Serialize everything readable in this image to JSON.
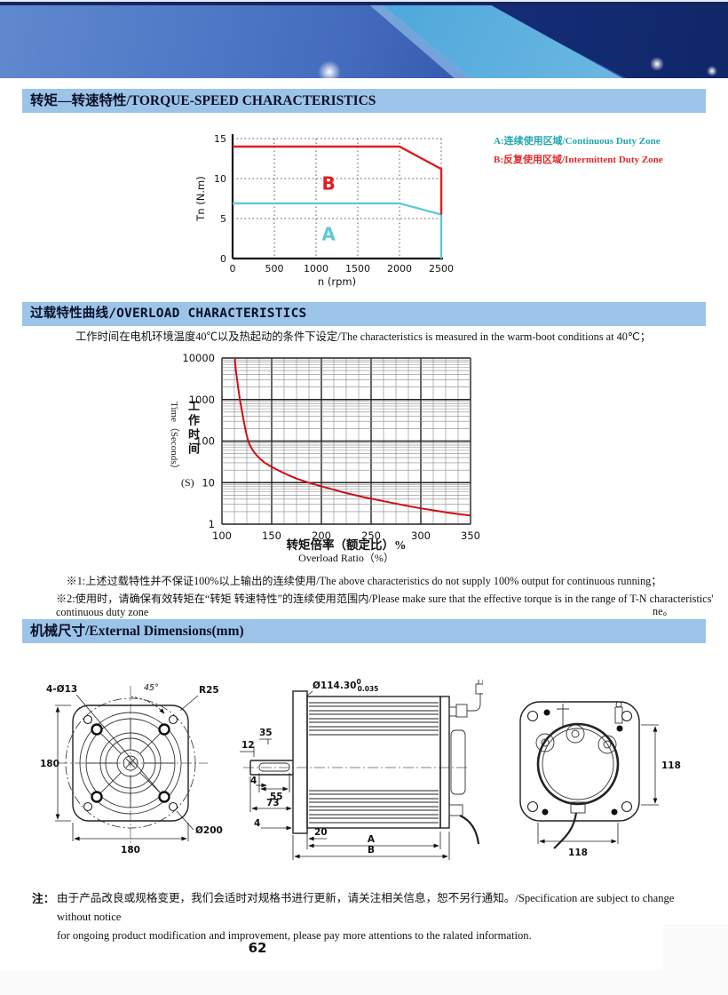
{
  "sections": {
    "torque_speed": {
      "title": "转矩—转速特性/TORQUE-SPEED CHARACTERISTICS"
    },
    "overload": {
      "title": "过载特性曲线/OVERLOAD CHARACTERISTICS",
      "subtitle": "工作时间在电机环境温度40℃以及热起动的条件下设定/The characteristics is measured in the warm-boot conditions at 40℃；",
      "note1": "※1:上述过载特性并不保证100%以上输出的连续使用/The above characteristics do not supply 100% output for continuous running；",
      "note2": "※2:使用时，请确保有效转矩在“转矩 转速特性”的连续使用范围内/Please make sure that the effective torque is in the range of T-N characteristics' continuous duty zone",
      "note2_dash": "-",
      "note2_overflow": "ne。"
    },
    "dimensions": {
      "title": "机械尺寸/External Dimensions(mm)"
    }
  },
  "legend": {
    "a": {
      "label": "A:连续使用区域/Continuous Duty Zone",
      "color": "#1fa8ad"
    },
    "b": {
      "label": "B:反复使用区域/Intermittent Duty Zone",
      "color": "#e02a2a"
    }
  },
  "chart_data": [
    {
      "type": "line",
      "title": "Torque-Speed Characteristics",
      "xlabel": "n (rpm)",
      "ylabel": "Tn (N.m)",
      "xlim": [
        0,
        2500
      ],
      "ylim": [
        0,
        15
      ],
      "xticks": [
        0,
        500,
        1000,
        1500,
        2000,
        2500
      ],
      "yticks": [
        0,
        5,
        10,
        15
      ],
      "grid": "dotted",
      "series": [
        {
          "name": "Intermittent duty limit",
          "zone_label": "B",
          "color": "#e01d20",
          "points": [
            [
              0,
              14
            ],
            [
              2000,
              14
            ],
            [
              2500,
              11.2
            ],
            [
              2500,
              5.5
            ]
          ],
          "label_pos": [
            1150,
            8.6
          ]
        },
        {
          "name": "Continuous duty limit",
          "zone_label": "A",
          "color": "#5ec8da",
          "points": [
            [
              0,
              6.9
            ],
            [
              2000,
              6.9
            ],
            [
              2500,
              5.5
            ],
            [
              2500,
              0
            ]
          ],
          "label_pos": [
            1150,
            2.3
          ]
        }
      ]
    },
    {
      "type": "line",
      "title": "Overload Characteristics",
      "xlabel_cn": "转矩倍率（额定比）%",
      "xlabel_en": "Overload Ratio（%）",
      "ylabel_en": "Time（Seconds）",
      "ylabel_cn": "工作时间",
      "ylabel_unit": "(S)",
      "xlim": [
        100,
        350
      ],
      "ylim": [
        1,
        10000
      ],
      "yscale": "log",
      "xticks": [
        100,
        150,
        200,
        250,
        300,
        350
      ],
      "yticks": [
        1,
        10,
        100,
        1000,
        10000
      ],
      "x_minor_step": 12.5,
      "series": [
        {
          "name": "Overload time curve",
          "color": "#cc1116",
          "points": [
            [
              113,
              9500
            ],
            [
              114,
              5000
            ],
            [
              116,
              2200
            ],
            [
              118,
              1000
            ],
            [
              120,
              550
            ],
            [
              122,
              300
            ],
            [
              124,
              170
            ],
            [
              126,
              110
            ],
            [
              128,
              80
            ],
            [
              131,
              60
            ],
            [
              134,
              48
            ],
            [
              138,
              38
            ],
            [
              143,
              30
            ],
            [
              150,
              24
            ],
            [
              158,
              19
            ],
            [
              166,
              15.5
            ],
            [
              175,
              12.5
            ],
            [
              185,
              10.3
            ],
            [
              195,
              8.8
            ],
            [
              200,
              8.2
            ],
            [
              212,
              6.8
            ],
            [
              225,
              5.6
            ],
            [
              240,
              4.6
            ],
            [
              255,
              3.9
            ],
            [
              270,
              3.3
            ],
            [
              285,
              2.8
            ],
            [
              300,
              2.4
            ],
            [
              315,
              2.1
            ],
            [
              330,
              1.85
            ],
            [
              340,
              1.72
            ],
            [
              350,
              1.62
            ]
          ]
        }
      ]
    }
  ],
  "drawings": {
    "front_view": {
      "labels": {
        "holes": "4-Ø13",
        "angle": "45°",
        "radius": "R25",
        "height": "180",
        "width": "180",
        "diameter": "Ø200"
      }
    },
    "side_view": {
      "labels": {
        "shaft_dia": "Ø114.30",
        "tol_upper": "0",
        "tol_lower": "0.035",
        "d35": "35",
        "d12": "12",
        "d4a": "4",
        "d55": "55",
        "d73": "73",
        "d4b": "4",
        "d20": "20",
        "dA": "A",
        "dB": "B"
      }
    },
    "rear_view": {
      "labels": {
        "height": "118",
        "width": "118"
      }
    }
  },
  "footer": {
    "note_prefix": "注：",
    "note_line1": "由于产品改良或规格变更，我们会适时对规格书进行更新，请关注相关信息，恕不另行通知。/Specification are subject to change without notice",
    "note_line2": "for ongoing product modification and improvement, please pay more attentions to the ralated information.",
    "page_number": "62"
  }
}
